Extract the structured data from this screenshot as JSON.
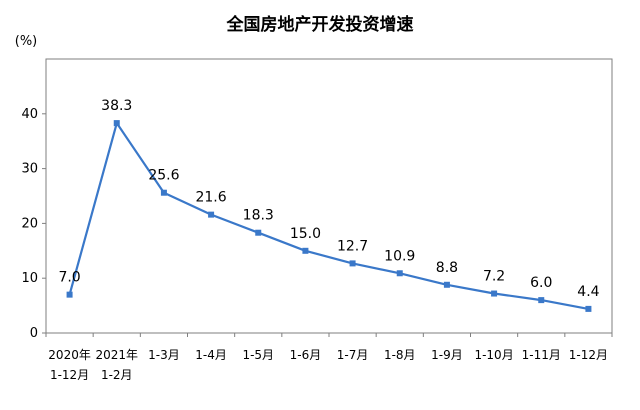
{
  "chart_data": {
    "type": "line",
    "title": "全国房地产开发投资增速",
    "ylabel": "(%)",
    "xlabel": "",
    "ylim": [
      0,
      50
    ],
    "yticks": [
      0,
      10,
      20,
      30,
      40
    ],
    "grid": false,
    "legend": "none",
    "line_color": "#3a78c9",
    "axis_color": "#7f7f7f",
    "categories": [
      [
        "2020年",
        "1-12月"
      ],
      [
        "2021年",
        "1-2月"
      ],
      [
        "1-3月"
      ],
      [
        "1-4月"
      ],
      [
        "1-5月"
      ],
      [
        "1-6月"
      ],
      [
        "1-7月"
      ],
      [
        "1-8月"
      ],
      [
        "1-9月"
      ],
      [
        "1-10月"
      ],
      [
        "1-11月"
      ],
      [
        "1-12月"
      ]
    ],
    "series": [
      {
        "values": [
          7.0,
          38.3,
          25.6,
          21.6,
          18.3,
          15.0,
          12.7,
          10.9,
          8.8,
          7.2,
          6.0,
          4.4
        ],
        "labels": [
          "7.0",
          "38.3",
          "25.6",
          "21.6",
          "18.3",
          "15.0",
          "12.7",
          "10.9",
          "8.8",
          "7.2",
          "6.0",
          "4.4"
        ]
      }
    ]
  }
}
